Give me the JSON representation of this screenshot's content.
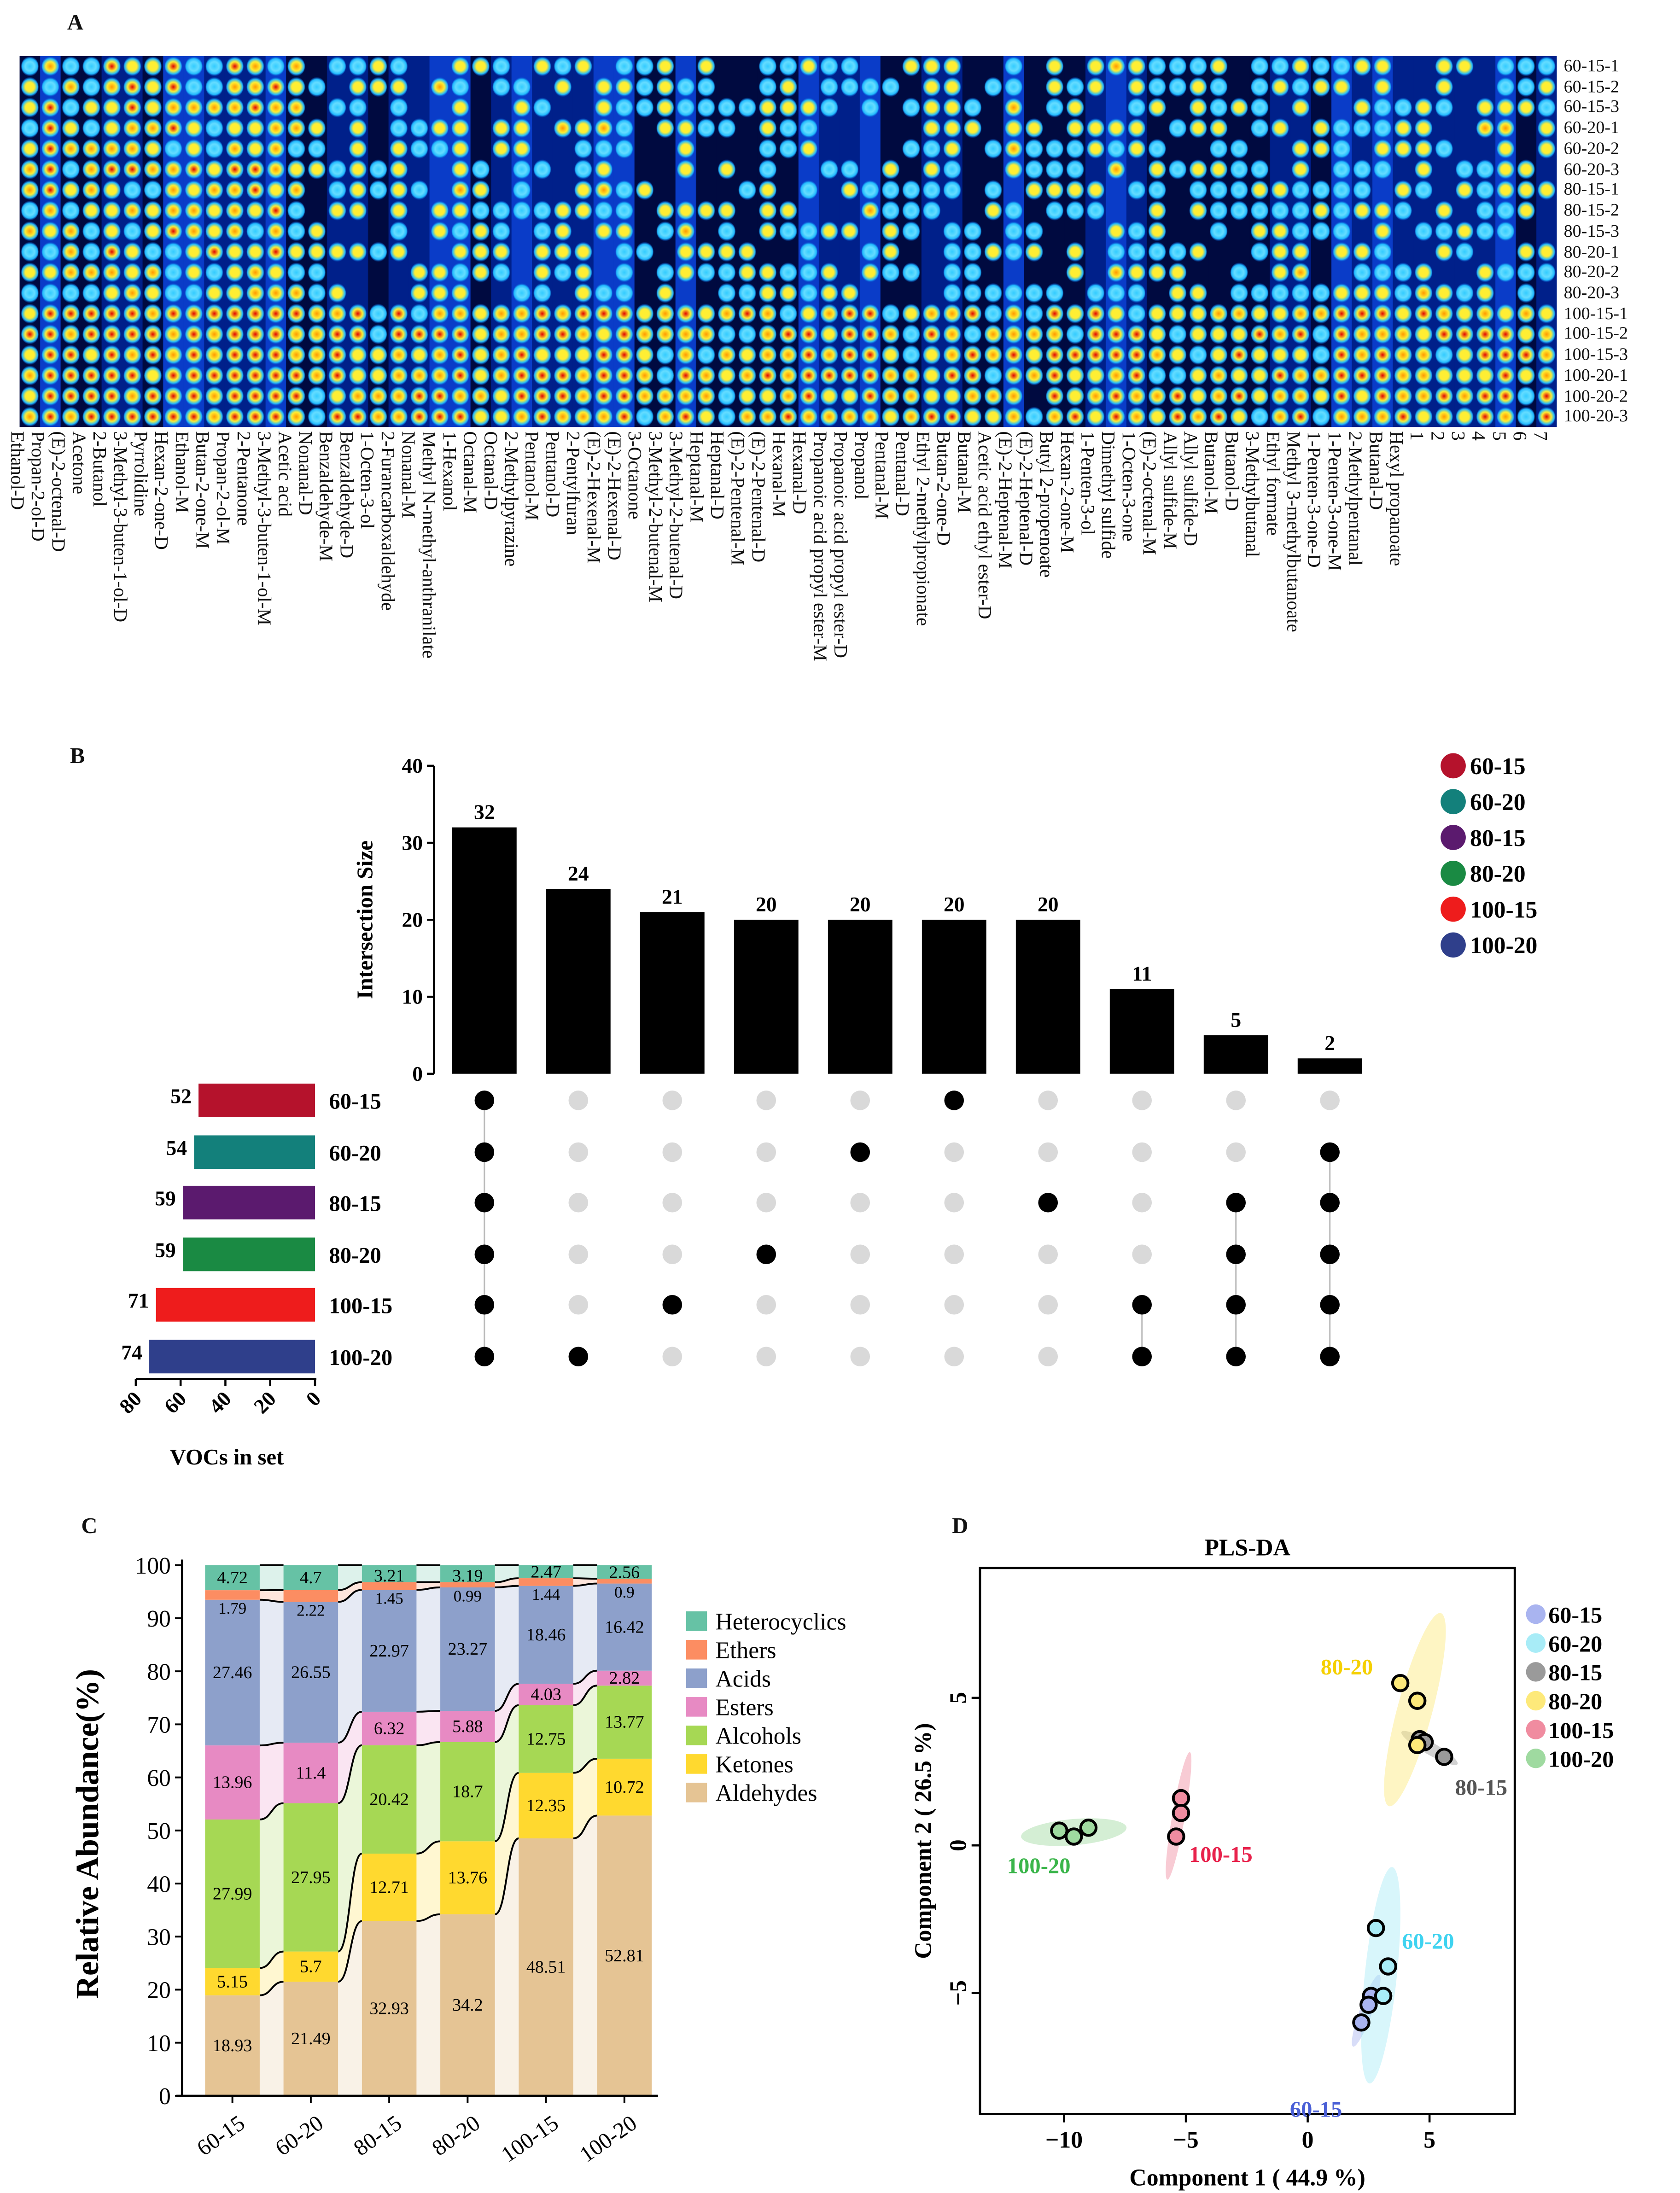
{
  "panels": {
    "a": "A",
    "b": "B",
    "c": "C",
    "d": "D"
  },
  "chart_data": [
    {
      "type": "heatmap",
      "title": "A",
      "rows": [
        "60-15-1",
        "60-15-2",
        "60-15-3",
        "60-20-1",
        "60-20-2",
        "60-20-3",
        "80-15-1",
        "80-15-2",
        "80-15-3",
        "80-20-1",
        "80-20-2",
        "80-20-3",
        "100-15-1",
        "100-15-2",
        "100-15-3",
        "100-20-1",
        "100-20-2",
        "100-20-3"
      ],
      "columns": [
        "Ethanol-D",
        "Propan-2-ol-D",
        "(E)-2-octenal-D",
        "Acetone",
        "2-Butanol",
        "3-Methyl-3-buten-1-ol-D",
        "Pyrrolidine",
        "Hexan-2-one-D",
        "Ethanol-M",
        "Butan-2-one-M",
        "Propan-2-ol-M",
        "2-Pentanone",
        "3-Methyl-3-buten-1-ol-M",
        "Acetic acid",
        "Nonanal-D",
        "Benzaldehyde-M",
        "Benzaldehyde-D",
        "1-Octen-3-ol",
        "2-Furancarboxaldehyde",
        "Nonanal-M",
        "Methyl N-methyl-anthranilate",
        "1-Hexanol",
        "Octanal-M",
        "Octanal-D",
        "2-Methylpyrazine",
        "Pentanol-M",
        "Pentanol-D",
        "2-Pentylfuran",
        "(E)-2-Hexenal-M",
        "(E)-2-Hexenal-D",
        "3-Octanone",
        "3-Methyl-2-butenal-M",
        "3-Methyl-2-butenal-D",
        "Heptanal-M",
        "Heptanal-D",
        "(E)-2-Pentenal-M",
        "(E)-2-Pentenal-D",
        "Hexanal-M",
        "Hexanal-D",
        "Propanoic acid propyl ester-M",
        "Propanoic acid propyl ester-D",
        "Propanol",
        "Pentanal-M",
        "Pentanal-D",
        "Ethyl 2-methylpropionate",
        "Butan-2-one-D",
        "Butanal-M",
        "Acetic acid ethyl ester-D",
        "(E)-2-Heptenal-M",
        "(E)-2-Heptenal-D",
        "Butyl 2-propenoate",
        "Hexan-2-one-M",
        "1-Penten-3-ol",
        "Dimethyl sulfide",
        "1-Octen-3-one",
        "(E)-2-octenal-M",
        "Allyl sulfide-M",
        "Allyl sulfide-D",
        "Butanol-M",
        "Butanol-D",
        "3-Methylbutanal",
        "Ethyl formate",
        "Methyl 3-methylbutanoate",
        "1-Penten-3-one-D",
        "1-Penten-3-one-M",
        "2-Methylpentanal",
        "Butanal-D",
        "Hexyl propanoate",
        "1",
        "2",
        "3",
        "4",
        "5",
        "6",
        "7"
      ]
    },
    {
      "type": "bar",
      "subtype": "upset",
      "ylabel": "Intersection Size",
      "ylim": [
        0,
        40
      ],
      "yticks": [
        "0",
        "10",
        "20",
        "30",
        "40"
      ],
      "intersections": [
        {
          "size": 32,
          "label": "32",
          "sets": [
            "60-15",
            "60-20",
            "80-15",
            "80-20",
            "100-15",
            "100-20"
          ]
        },
        {
          "size": 24,
          "label": "24",
          "sets": [
            "100-20"
          ]
        },
        {
          "size": 21,
          "label": "21",
          "sets": [
            "100-15"
          ]
        },
        {
          "size": 20,
          "label": "20",
          "sets": [
            "80-20"
          ]
        },
        {
          "size": 20,
          "label": "20",
          "sets": [
            "60-20"
          ]
        },
        {
          "size": 20,
          "label": "20",
          "sets": [
            "60-15"
          ]
        },
        {
          "size": 20,
          "label": "20",
          "sets": [
            "80-15"
          ]
        },
        {
          "size": 11,
          "label": "11",
          "sets": [
            "100-15",
            "100-20"
          ]
        },
        {
          "size": 5,
          "label": "5",
          "sets": [
            "80-15",
            "80-20",
            "100-15",
            "100-20"
          ]
        },
        {
          "size": 2,
          "label": "2",
          "sets": [
            "60-20",
            "80-15",
            "80-20",
            "100-15",
            "100-20"
          ]
        }
      ],
      "sets": [
        {
          "name": "60-15",
          "size": 52,
          "label": "52",
          "color": "#b5122c"
        },
        {
          "name": "60-20",
          "size": 54,
          "label": "54",
          "color": "#13807b"
        },
        {
          "name": "80-15",
          "size": 59,
          "label": "59",
          "color": "#5b1a6e"
        },
        {
          "name": "80-20",
          "size": 59,
          "label": "59",
          "color": "#1a8a43"
        },
        {
          "name": "100-15",
          "size": 71,
          "label": "71",
          "color": "#ee1c1c"
        },
        {
          "name": "100-20",
          "size": 74,
          "label": "74",
          "color": "#2f3f8b"
        }
      ],
      "set_xlabel": "VOCs in set",
      "set_xticks": [
        "80",
        "60",
        "40",
        "20",
        "0"
      ],
      "set_xlim": [
        0,
        80
      ],
      "legend_position": "top-right"
    },
    {
      "type": "bar",
      "subtype": "stacked-percent",
      "ylabel": "Relative Abundance(%)",
      "ylim": [
        0,
        100
      ],
      "yticks": [
        "0",
        "10",
        "20",
        "30",
        "40",
        "50",
        "60",
        "70",
        "80",
        "90",
        "100"
      ],
      "categories": [
        "60-15",
        "60-20",
        "80-15",
        "80-20",
        "100-15",
        "100-20"
      ],
      "series": [
        {
          "name": "Aldehydes",
          "color": "#e5c494",
          "values": [
            18.93,
            21.49,
            32.93,
            34.2,
            48.51,
            52.81
          ],
          "labels": [
            "18.93",
            "21.49",
            "32.93",
            "34.2",
            "48.51",
            "52.81"
          ]
        },
        {
          "name": "Ketones",
          "color": "#ffd92f",
          "values": [
            5.15,
            5.7,
            12.71,
            13.76,
            12.35,
            10.72
          ],
          "labels": [
            "5.15",
            "5.7",
            "12.71",
            "13.76",
            "12.35",
            "10.72"
          ]
        },
        {
          "name": "Alcohols",
          "color": "#a6d854",
          "values": [
            27.99,
            27.95,
            20.42,
            18.7,
            12.75,
            13.77
          ],
          "labels": [
            "27.99",
            "27.95",
            "20.42",
            "18.7",
            "12.75",
            "13.77"
          ]
        },
        {
          "name": "Esters",
          "color": "#e78ac3",
          "values": [
            13.96,
            11.4,
            6.32,
            5.88,
            4.03,
            2.82
          ],
          "labels": [
            "13.96",
            "11.4",
            "6.32",
            "5.88",
            "4.03",
            "2.82"
          ]
        },
        {
          "name": "Acids",
          "color": "#8da0cb",
          "values": [
            27.46,
            26.55,
            22.97,
            23.27,
            18.46,
            16.42
          ],
          "labels": [
            "27.46",
            "26.55",
            "22.97",
            "23.27",
            "18.46",
            "16.42"
          ]
        },
        {
          "name": "Ethers",
          "color": "#fc8d62",
          "values": [
            1.79,
            2.22,
            1.45,
            0.99,
            1.44,
            0.9
          ],
          "labels": [
            "1.79",
            "2.22",
            "1.45",
            "0.99",
            "1.44",
            "0.9"
          ]
        },
        {
          "name": "Heterocyclics",
          "color": "#66c2a5",
          "values": [
            4.72,
            4.7,
            3.21,
            3.19,
            2.47,
            2.56
          ],
          "labels": [
            "4.72",
            "4.7",
            "3.21",
            "3.19",
            "2.47",
            "2.56"
          ]
        }
      ],
      "legend_order": [
        "Heterocyclics",
        "Ethers",
        "Acids",
        "Esters",
        "Alcohols",
        "Ketones",
        "Aldehydes"
      ],
      "legend_position": "right"
    },
    {
      "type": "scatter",
      "title": "PLS-DA",
      "xlabel": "Component 1 ( 44.9 %)",
      "ylabel": "Component 2 ( 26.5 %)",
      "xlim": [
        -13.45,
        8.5
      ],
      "ylim": [
        -9.1,
        9.4
      ],
      "xticks": [
        {
          "v": -10,
          "t": "−10"
        },
        {
          "v": -5,
          "t": "−5"
        },
        {
          "v": 0,
          "t": "0"
        },
        {
          "v": 5,
          "t": "5"
        }
      ],
      "yticks": [
        {
          "v": -5,
          "t": "−5"
        },
        {
          "v": 0,
          "t": "0"
        },
        {
          "v": 5,
          "t": "5"
        }
      ],
      "series": [
        {
          "name": "60-15",
          "fill": "#a9b4f0",
          "label_color": "#4a5fd6",
          "points": [
            [
              2.6,
              -5.1
            ],
            [
              2.5,
              -5.4
            ],
            [
              2.2,
              -6.0
            ]
          ]
        },
        {
          "name": "60-20",
          "fill": "#a8ecf7",
          "label_color": "#3fd3f0",
          "points": [
            [
              2.8,
              -2.8
            ],
            [
              3.3,
              -4.1
            ],
            [
              3.1,
              -5.1
            ]
          ]
        },
        {
          "name": "80-15",
          "fill": "#9a9a9a",
          "label_color": "#555555",
          "points": [
            [
              4.6,
              3.6
            ],
            [
              4.8,
              3.5
            ],
            [
              5.6,
              3.0
            ]
          ]
        },
        {
          "name": "80-20",
          "fill": "#fde97a",
          "label_color": "#f5d000",
          "points": [
            [
              3.8,
              5.5
            ],
            [
              4.5,
              4.9
            ],
            [
              4.5,
              3.4
            ]
          ]
        },
        {
          "name": "100-15",
          "fill": "#f08ca0",
          "label_color": "#e8214b",
          "points": [
            [
              -5.2,
              1.6
            ],
            [
              -5.2,
              1.1
            ],
            [
              -5.4,
              0.3
            ]
          ]
        },
        {
          "name": "100-20",
          "fill": "#9fdaa0",
          "label_color": "#3ab54a",
          "points": [
            [
              -10.2,
              0.5
            ],
            [
              -9.6,
              0.3
            ],
            [
              -9.0,
              0.6
            ]
          ]
        }
      ],
      "legend_position": "right"
    }
  ]
}
